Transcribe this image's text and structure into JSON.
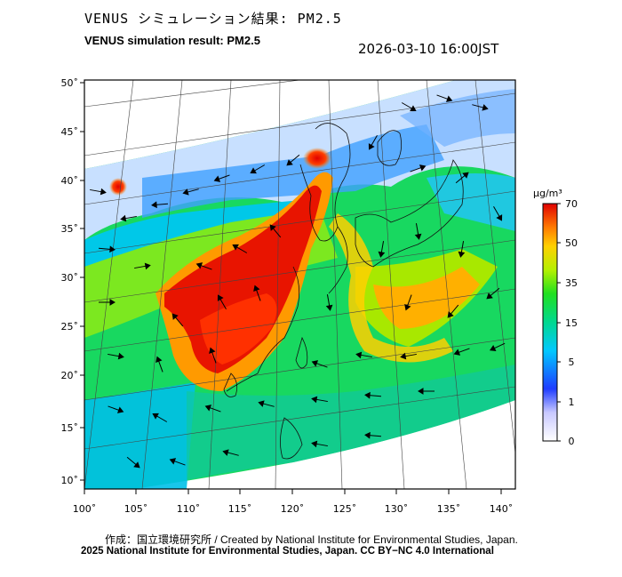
{
  "header": {
    "title_jp": "VENUS シミュレーション結果: PM2.5",
    "title_en": "VENUS simulation result: PM2.5",
    "timestamp": "2026-03-10 16:00JST"
  },
  "map": {
    "lat_labels": [
      "50˚",
      "45˚",
      "40˚",
      "35˚",
      "30˚",
      "25˚",
      "20˚",
      "15˚",
      "10˚"
    ],
    "lon_labels": [
      "100˚",
      "105˚",
      "110˚",
      "115˚",
      "120˚",
      "125˚",
      "130˚",
      "135˚",
      "140˚"
    ]
  },
  "legend": {
    "unit": "μg/m³",
    "ticks": [
      "70",
      "50",
      "35",
      "15",
      "5",
      "1",
      "0"
    ],
    "colors": [
      "#ffffff",
      "#1e3cff",
      "#00c8ff",
      "#00e040",
      "#a0f000",
      "#ffd000",
      "#ff7a00",
      "#e80000"
    ]
  },
  "footer": {
    "credit_line": "作成：国立環境研究所 / Created by National Institute for Environmental Studies, Japan.",
    "copyright_line": "2025 National Institute for Environmental Studies, Japan. CC BY−NC 4.0 International"
  }
}
